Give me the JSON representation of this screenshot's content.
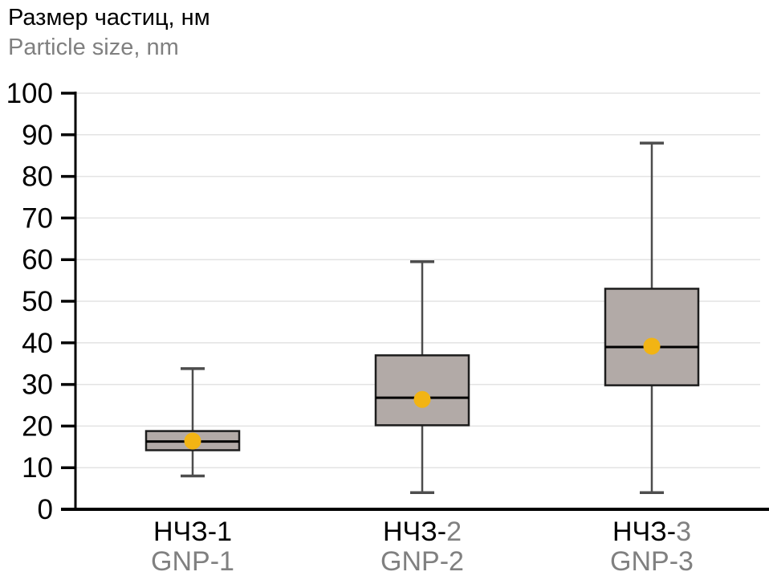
{
  "title": {
    "ru": "Размер частиц, нм",
    "en": "Particle size, nm"
  },
  "chart_data": {
    "type": "box",
    "title_ru": "Размер частиц, нм",
    "title_en": "Particle size, nm",
    "y_axis": {
      "min": 0,
      "max": 100,
      "step": 10,
      "ticks": [
        0,
        10,
        20,
        30,
        40,
        50,
        60,
        70,
        80,
        90,
        100
      ]
    },
    "grid": "on",
    "legend": "none",
    "groups": [
      {
        "ru_prefix": "НЧЗ-",
        "ru_suffix": "1",
        "ru_suffix_gray": false,
        "label_en": "GNP-1",
        "min": 8,
        "q1": 14.2,
        "median": 16.3,
        "q3": 18.8,
        "max": 33.8,
        "mean": 16.4
      },
      {
        "ru_prefix": "НЧЗ-",
        "ru_suffix": "2",
        "ru_suffix_gray": true,
        "label_en": "GNP-2",
        "min": 4,
        "q1": 20.2,
        "median": 26.8,
        "q3": 37,
        "max": 59.5,
        "mean": 26.4
      },
      {
        "ru_prefix": "НЧЗ-",
        "ru_suffix": "3",
        "ru_suffix_gray": true,
        "label_en": "GNP-3",
        "min": 4,
        "q1": 29.8,
        "median": 39,
        "q3": 53,
        "max": 88,
        "mean": 39.2
      }
    ]
  },
  "colors": {
    "box_fill": "#b2aaa7",
    "box_border": "#1d1d1d",
    "median": "#000000",
    "whisker": "#4d4d4d",
    "mean_dot": "#f2b414",
    "grid": "#e3e3e3",
    "axis": "#000000",
    "text_black": "#000000",
    "text_gray": "#808080"
  }
}
